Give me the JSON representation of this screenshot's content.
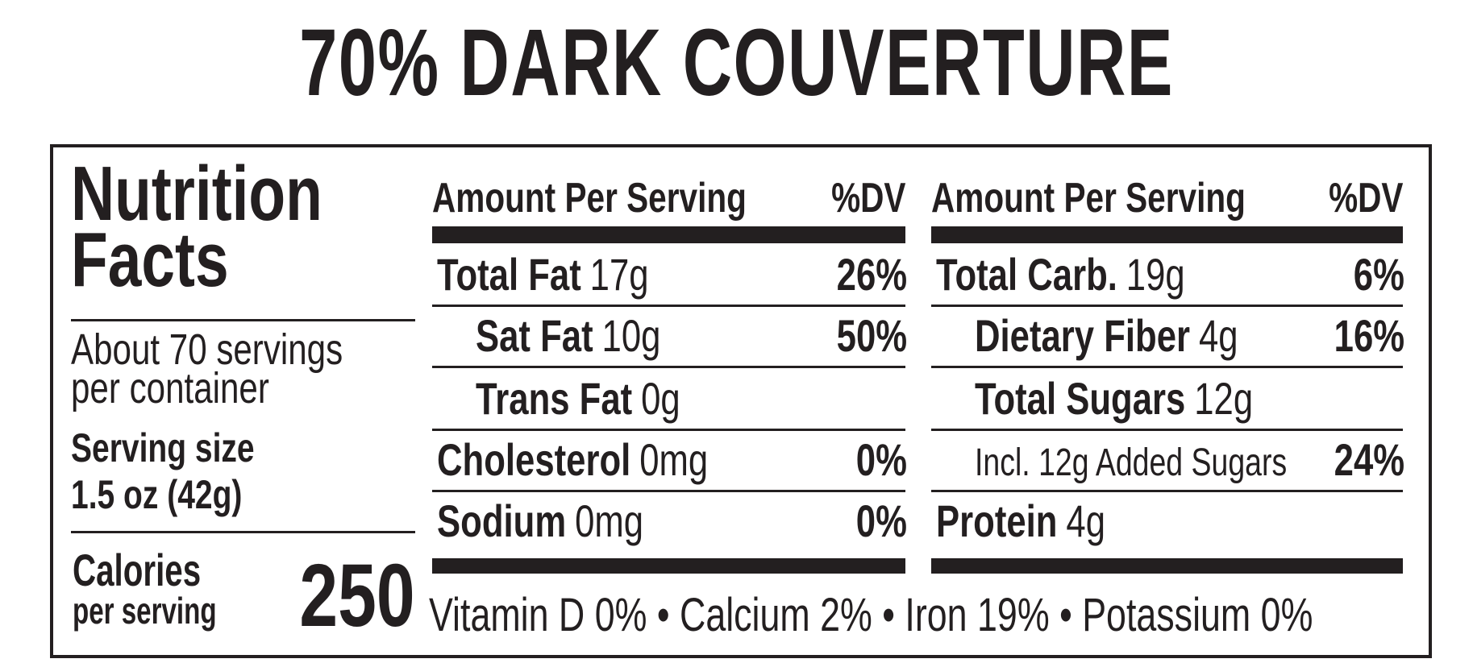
{
  "title": "70% DARK COUVERTURE",
  "panel": {
    "heading": [
      "Nutrition",
      "Facts"
    ],
    "servings": [
      "About 70 servings",
      "per container"
    ],
    "serving_size": {
      "label": "Serving size",
      "value": "1.5 oz (42g)"
    },
    "calories": {
      "label": [
        "Calories",
        "per serving"
      ],
      "value": "250"
    }
  },
  "columns": [
    {
      "header": {
        "amount": "Amount Per Serving",
        "dv": "%DV"
      },
      "rows": [
        {
          "name": "Total Fat",
          "amount": "17g",
          "dv": "26%",
          "indent": false
        },
        {
          "name": "Sat Fat",
          "amount": "10g",
          "dv": "50%",
          "indent": true
        },
        {
          "name": "Trans Fat",
          "amount": "0g",
          "indent": true
        },
        {
          "name": "Cholesterol",
          "amount": "0mg",
          "dv": "0%",
          "indent": false
        },
        {
          "name": "Sodium",
          "amount": "0mg",
          "dv": "0%",
          "indent": false
        }
      ]
    },
    {
      "header": {
        "amount": "Amount Per Serving",
        "dv": "%DV"
      },
      "rows": [
        {
          "name": "Total Carb.",
          "amount": "19g",
          "dv": "6%",
          "indent": false
        },
        {
          "name": "Dietary Fiber",
          "amount": "4g",
          "dv": "16%",
          "indent": true
        },
        {
          "name": "Total Sugars",
          "amount": "12g",
          "indent": true
        },
        {
          "amount": "Incl. 12g Added Sugars",
          "dv": "24%",
          "indent": true
        },
        {
          "name": "Protein",
          "amount": "4g",
          "indent": false
        }
      ]
    }
  ],
  "footer": "Vitamin D 0% • Calcium 2% • Iron 19% • Potassium 0%"
}
